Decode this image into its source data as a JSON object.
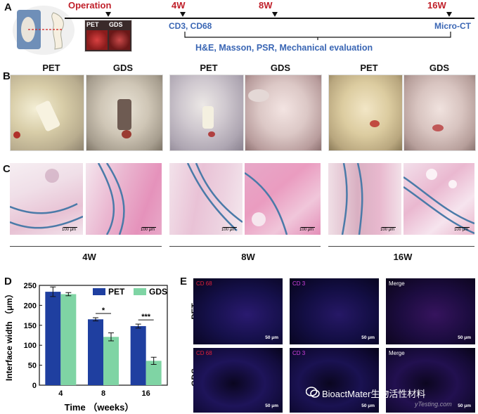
{
  "panel_letters": {
    "a": "A",
    "b": "B",
    "c": "C",
    "d": "D",
    "e": "E"
  },
  "timeline": {
    "operation": "Operation",
    "w4": "4W",
    "w8": "8W",
    "w16": "16W",
    "pet_inset": "PET",
    "gds_inset": "GDS",
    "cd_label": "CD3, CD68",
    "microct_label": "Micro-CT",
    "bracket_label": "H&E, Masson, PSR, Mechanical evaluation"
  },
  "photos": {
    "labels": [
      "PET",
      "GDS",
      "PET",
      "GDS",
      "PET",
      "GDS"
    ]
  },
  "histology": {
    "scale": "100 μm"
  },
  "groups": [
    "4W",
    "8W",
    "16W"
  ],
  "fluorescence": {
    "col_labels": [
      "CD 68",
      "CD 3",
      "Merge"
    ],
    "row_labels": [
      "PET",
      "GDS"
    ],
    "scale": "50 μm",
    "colors": {
      "cd68": "#e0203a",
      "cd3": "#d040e0",
      "merge": "#ffffff"
    }
  },
  "watermark": {
    "text": "BioactMater生物活性材料",
    "sub": "yTesting.com"
  },
  "chart_data": {
    "type": "bar",
    "categories": [
      "4",
      "8",
      "16"
    ],
    "series": [
      {
        "name": "PET",
        "values": [
          234,
          165,
          148
        ],
        "errors": [
          12,
          4,
          5
        ],
        "color": "#1f3fa0"
      },
      {
        "name": "GDS",
        "values": [
          228,
          121,
          61
        ],
        "errors": [
          4,
          10,
          9
        ],
        "color": "#7fd4a4"
      }
    ],
    "significance": [
      {
        "category": "8",
        "label": "*"
      },
      {
        "category": "16",
        "label": "***"
      }
    ],
    "xlabel": "Time （weeks）",
    "ylabel": "Interface width （μm）",
    "ylim": [
      0,
      250
    ],
    "yticks": [
      "0",
      "50",
      "100",
      "150",
      "200",
      "250"
    ],
    "legend_position": "top-right"
  }
}
